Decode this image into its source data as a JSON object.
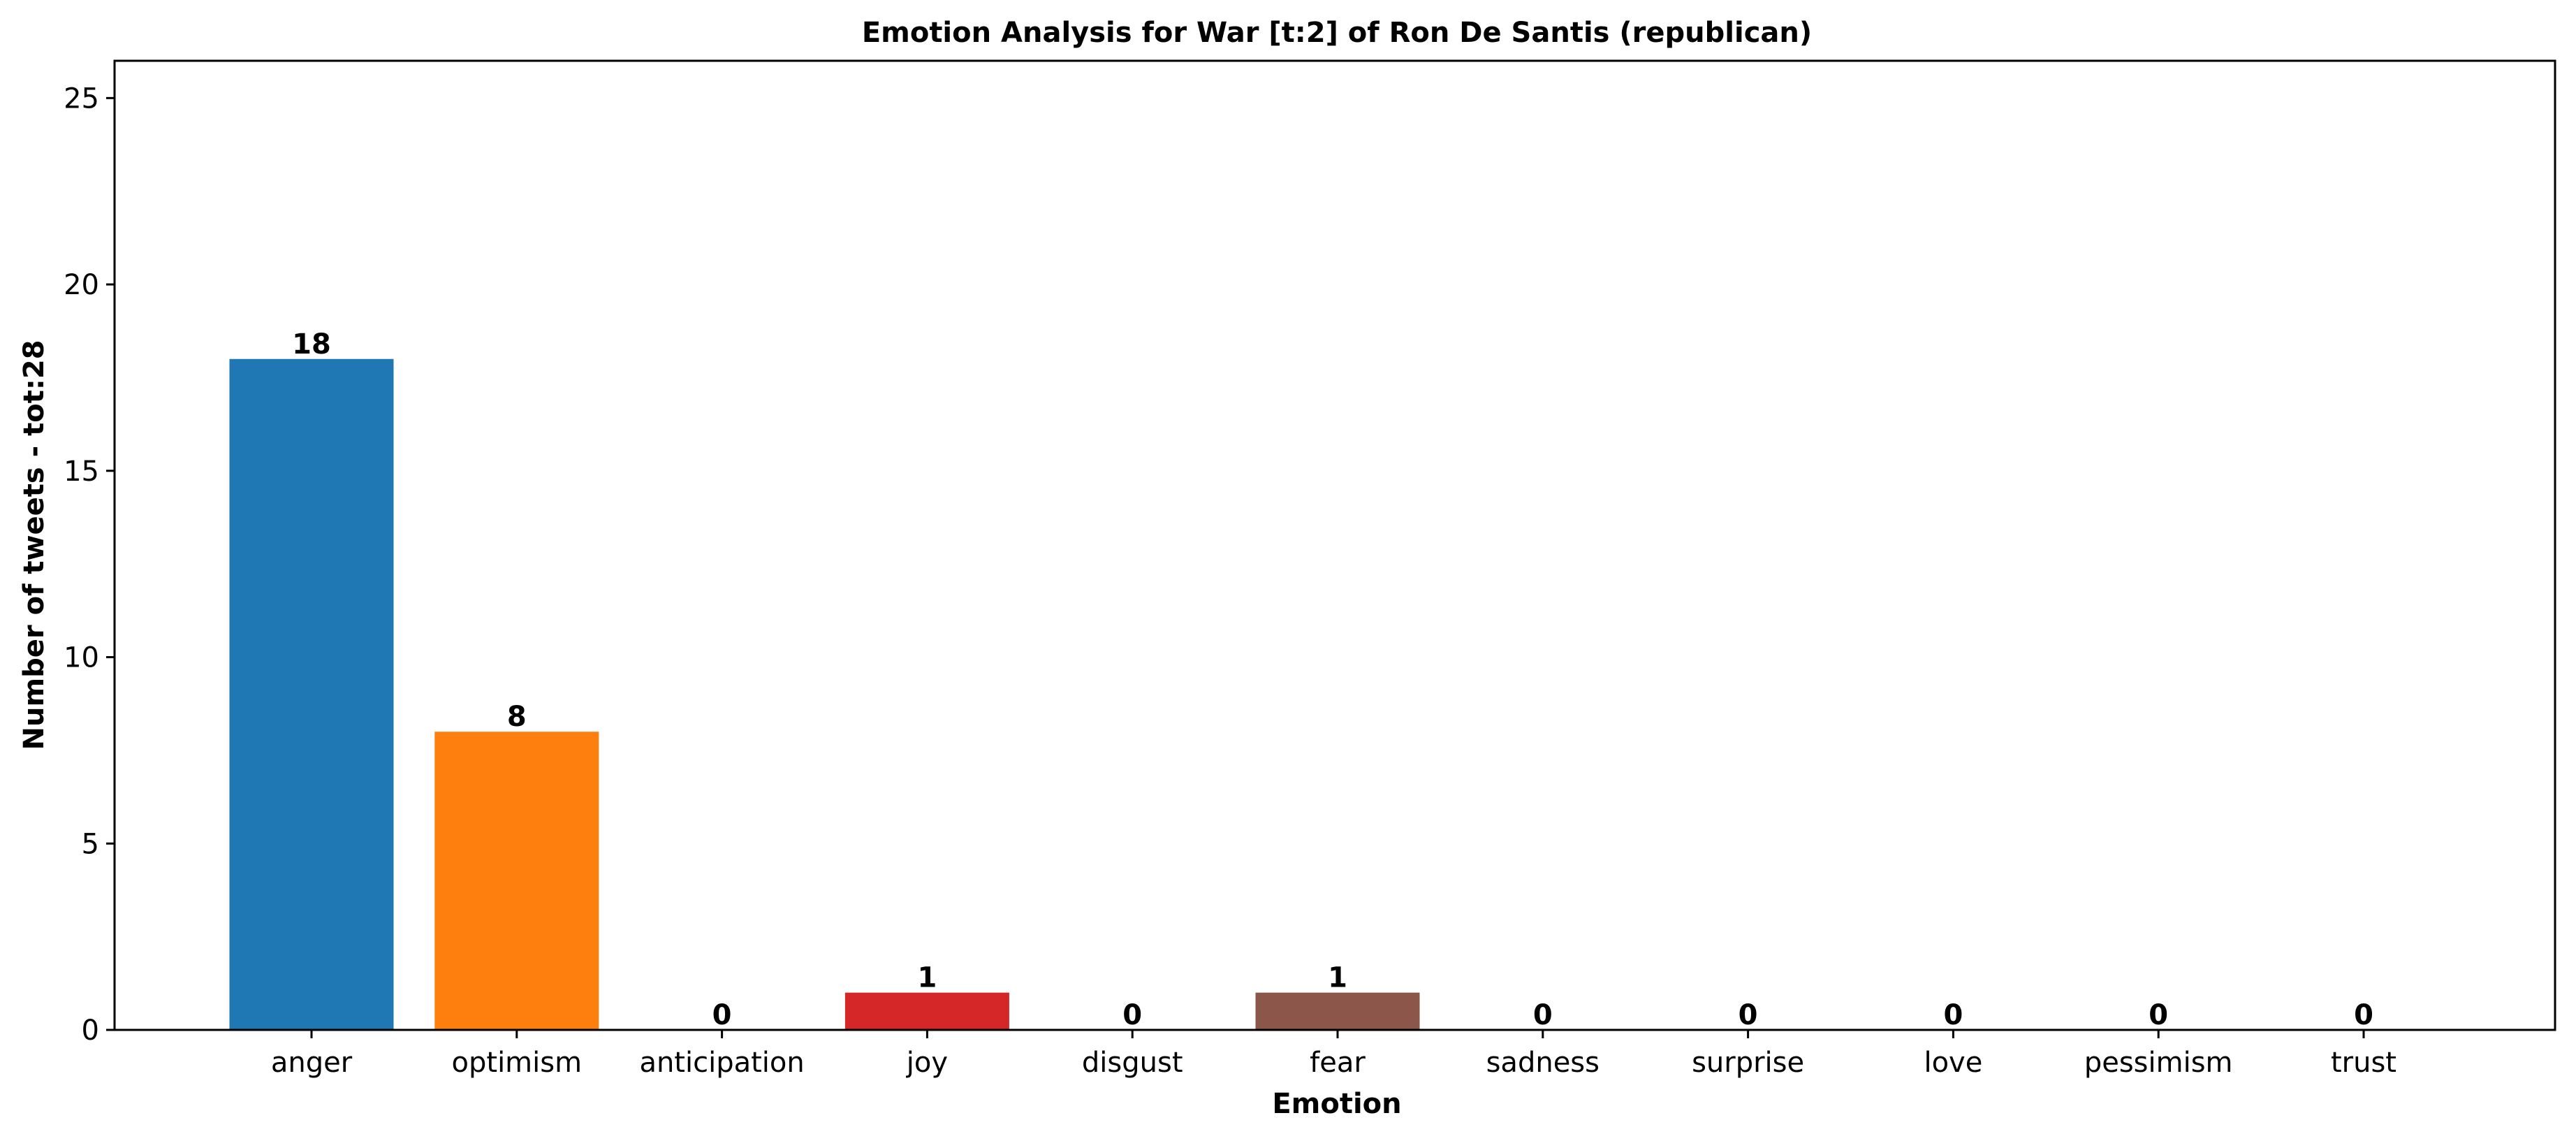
{
  "chart_data": {
    "type": "bar",
    "title": "Emotion Analysis for War [t:2] of Ron De Santis (republican)",
    "xlabel": "Emotion",
    "ylabel": "Number of tweets - tot:28",
    "categories": [
      "anger",
      "optimism",
      "anticipation",
      "joy",
      "disgust",
      "fear",
      "sadness",
      "surprise",
      "love",
      "pessimism",
      "trust"
    ],
    "values": [
      18,
      8,
      0,
      1,
      0,
      1,
      0,
      0,
      0,
      0,
      0
    ],
    "colors": [
      "#1f77b4",
      "#ff7f0e",
      "#2ca02c",
      "#d62728",
      "#9467bd",
      "#8c564b",
      "#e377c2",
      "#7f7f7f",
      "#bcbd22",
      "#17becf",
      "#1f77b4"
    ],
    "ylim": [
      0,
      26
    ],
    "yticks": [
      0,
      5,
      10,
      15,
      20,
      25
    ],
    "grid": false,
    "legend": "none",
    "data_labels": [
      "18",
      "8",
      "0",
      "1",
      "0",
      "1",
      "0",
      "0",
      "0",
      "0",
      "0"
    ]
  }
}
